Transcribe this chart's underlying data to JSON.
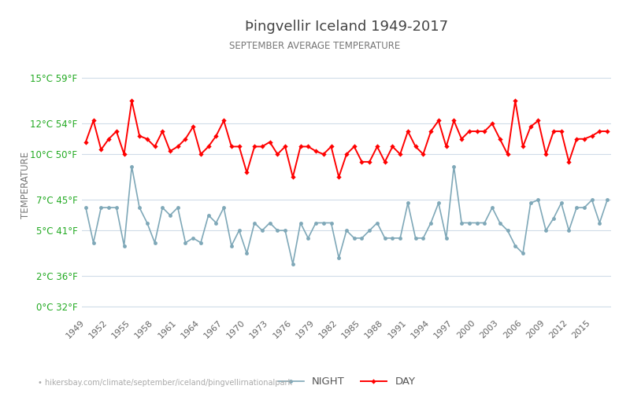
{
  "title": "Þingvellir Iceland 1949-2017",
  "subtitle": "SEPTEMBER AVERAGE TEMPERATURE",
  "ylabel": "TEMPERATURE",
  "xlabel_url": "• hikersbay.com/climate/september/iceland/þingvellirnationalpark",
  "years": [
    1949,
    1950,
    1951,
    1952,
    1953,
    1954,
    1955,
    1956,
    1957,
    1958,
    1959,
    1960,
    1961,
    1962,
    1963,
    1964,
    1965,
    1966,
    1967,
    1968,
    1969,
    1970,
    1971,
    1972,
    1973,
    1974,
    1975,
    1976,
    1977,
    1978,
    1979,
    1980,
    1981,
    1982,
    1983,
    1984,
    1985,
    1986,
    1987,
    1988,
    1989,
    1990,
    1991,
    1992,
    1993,
    1994,
    1995,
    1996,
    1997,
    1998,
    1999,
    2000,
    2001,
    2002,
    2003,
    2004,
    2005,
    2006,
    2007,
    2008,
    2009,
    2010,
    2011,
    2012,
    2013,
    2014,
    2015,
    2016,
    2017
  ],
  "day": [
    10.8,
    12.2,
    10.3,
    11.0,
    11.5,
    10.0,
    13.5,
    11.2,
    11.0,
    10.5,
    11.5,
    10.2,
    10.5,
    11.0,
    11.8,
    10.0,
    10.5,
    11.2,
    12.2,
    10.5,
    10.5,
    8.8,
    10.5,
    10.5,
    10.8,
    10.0,
    10.5,
    8.5,
    10.5,
    10.5,
    10.2,
    10.0,
    10.5,
    8.5,
    10.0,
    10.5,
    9.5,
    9.5,
    10.5,
    9.5,
    10.5,
    10.0,
    11.5,
    10.5,
    10.0,
    11.5,
    12.2,
    10.5,
    12.2,
    11.0,
    11.5,
    11.5,
    11.5,
    12.0,
    11.0,
    10.0,
    13.5,
    10.5,
    11.8,
    12.2,
    10.0,
    11.5,
    11.5,
    9.5,
    11.0,
    11.0,
    11.2,
    11.5,
    11.5
  ],
  "night": [
    6.5,
    4.2,
    6.5,
    6.5,
    6.5,
    4.0,
    9.2,
    6.5,
    5.5,
    4.2,
    6.5,
    6.0,
    6.5,
    4.2,
    4.5,
    4.2,
    6.0,
    5.5,
    6.5,
    4.0,
    5.0,
    3.5,
    5.5,
    5.0,
    5.5,
    5.0,
    5.0,
    2.8,
    5.5,
    4.5,
    5.5,
    5.5,
    5.5,
    3.2,
    5.0,
    4.5,
    4.5,
    5.0,
    5.5,
    4.5,
    4.5,
    4.5,
    6.8,
    4.5,
    4.5,
    5.5,
    6.8,
    4.5,
    9.2,
    5.5,
    5.5,
    5.5,
    5.5,
    6.5,
    5.5,
    5.0,
    4.0,
    3.5,
    6.8,
    7.0,
    5.0,
    5.8,
    6.8,
    5.0,
    6.5,
    6.5,
    7.0,
    5.5,
    7.0
  ],
  "yticks_c": [
    0,
    2,
    5,
    7,
    10,
    12,
    15
  ],
  "yticks_f": [
    32,
    36,
    41,
    45,
    50,
    54,
    59
  ],
  "ylim": [
    -0.5,
    16.5
  ],
  "day_color": "#ff0000",
  "night_color": "#7fa8b8",
  "background_color": "#ffffff",
  "grid_color": "#d0dce8",
  "title_color": "#444444",
  "subtitle_color": "#777777",
  "label_color": "#22aa22",
  "ylabel_color": "#777777",
  "url_color": "#aaaaaa",
  "legend_day_label": "DAY",
  "legend_night_label": "NIGHT"
}
